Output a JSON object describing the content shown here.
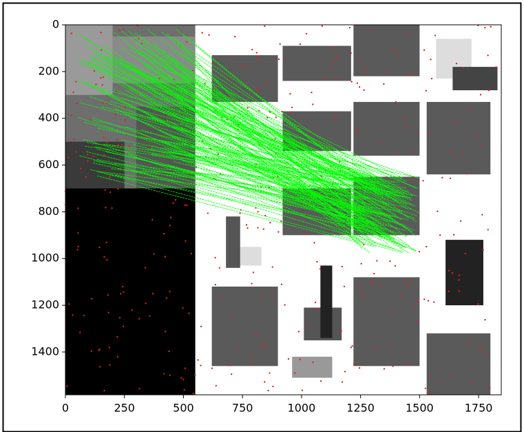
{
  "chart_data": {
    "type": "image",
    "xlim": [
      0,
      1846
    ],
    "ylim": [
      1583,
      0
    ],
    "xticks": [
      0,
      250,
      500,
      750,
      1000,
      1250,
      1500,
      1750
    ],
    "yticks": [
      0,
      200,
      400,
      600,
      800,
      1000,
      1200,
      1400
    ]
  }
}
